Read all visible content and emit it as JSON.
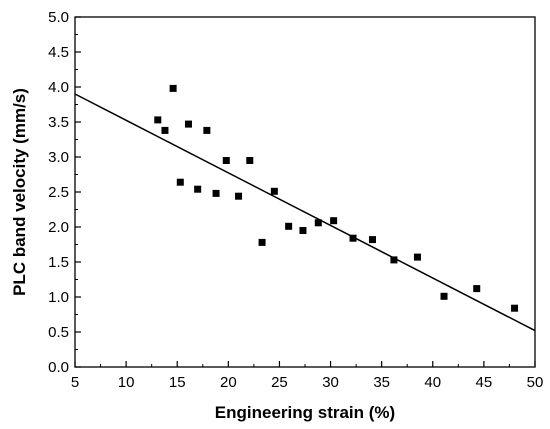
{
  "chart_data": {
    "type": "scatter",
    "title": "",
    "xlabel": "Engineering strain (%)",
    "ylabel": "PLC band velocity (mm/s)",
    "xlim": [
      5,
      50
    ],
    "ylim": [
      0.0,
      5.0
    ],
    "x_ticks": [
      "5",
      "10",
      "15",
      "20",
      "25",
      "30",
      "35",
      "40",
      "45",
      "50"
    ],
    "y_ticks": [
      "0.0",
      "0.5",
      "1.0",
      "1.5",
      "2.0",
      "2.5",
      "3.0",
      "3.5",
      "4.0",
      "4.5",
      "5.0"
    ],
    "grid": false,
    "legend": "none",
    "marker": "square",
    "marker_color": "#000000",
    "series": [
      {
        "points": [
          {
            "x": 13.1,
            "y": 3.53
          },
          {
            "x": 13.8,
            "y": 3.38
          },
          {
            "x": 14.6,
            "y": 3.98
          },
          {
            "x": 15.3,
            "y": 2.64
          },
          {
            "x": 16.1,
            "y": 3.47
          },
          {
            "x": 17.0,
            "y": 2.54
          },
          {
            "x": 17.9,
            "y": 3.38
          },
          {
            "x": 18.8,
            "y": 2.48
          },
          {
            "x": 19.8,
            "y": 2.95
          },
          {
            "x": 21.0,
            "y": 2.44
          },
          {
            "x": 22.1,
            "y": 2.95
          },
          {
            "x": 23.3,
            "y": 1.78
          },
          {
            "x": 24.5,
            "y": 2.51
          },
          {
            "x": 25.9,
            "y": 2.01
          },
          {
            "x": 27.3,
            "y": 1.95
          },
          {
            "x": 28.8,
            "y": 2.06
          },
          {
            "x": 30.3,
            "y": 2.09
          },
          {
            "x": 32.2,
            "y": 1.84
          },
          {
            "x": 34.1,
            "y": 1.82
          },
          {
            "x": 36.2,
            "y": 1.53
          },
          {
            "x": 38.5,
            "y": 1.57
          },
          {
            "x": 41.1,
            "y": 1.01
          },
          {
            "x": 44.3,
            "y": 1.12
          },
          {
            "x": 48.0,
            "y": 0.84
          }
        ]
      }
    ],
    "fit_line": {
      "type": "linear",
      "from": {
        "x": 5,
        "y": 3.9
      },
      "to": {
        "x": 50,
        "y": 0.52
      }
    }
  }
}
